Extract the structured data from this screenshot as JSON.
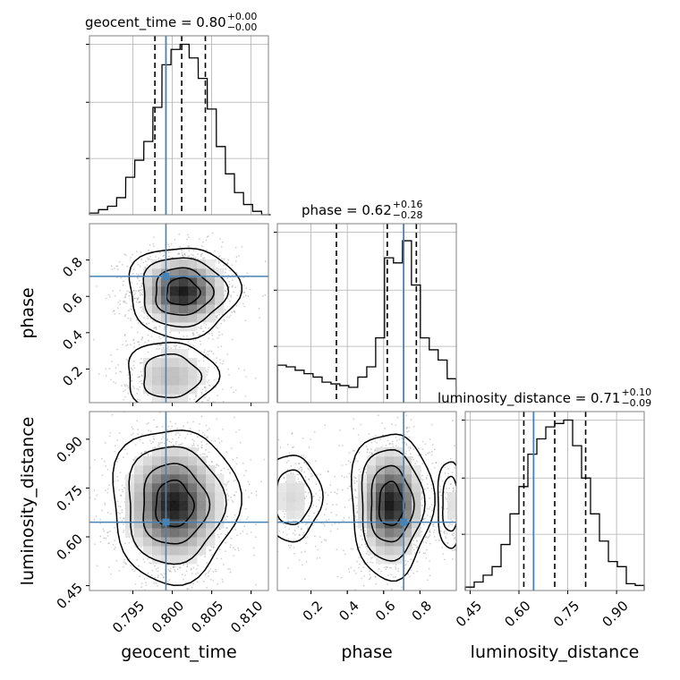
{
  "chart_data": {
    "type": "corner",
    "truth_color": "#4682b4",
    "parameters": [
      {
        "name": "geocent_time",
        "label": "geocent_time",
        "range": [
          0.7895,
          0.8122
        ],
        "ticks": [
          0.795,
          0.8,
          0.805,
          0.81
        ],
        "tick_labels": [
          "0.795",
          "0.800",
          "0.805",
          "0.810"
        ],
        "truth": 0.7992,
        "title": {
          "prefix": "geocent_time = 0.80",
          "plus": "+0.00",
          "minus": "−0.00"
        },
        "quantiles": [
          0.7978,
          0.8012,
          0.8042
        ],
        "hist_x": [
          0.7895,
          0.79065,
          0.7918,
          0.79295,
          0.7941,
          0.79525,
          0.7964,
          0.79755,
          0.7987,
          0.79985,
          0.801,
          0.80215,
          0.8033,
          0.80445,
          0.8056,
          0.80675,
          0.8079,
          0.80905,
          0.8102,
          0.81135
        ],
        "hist_y": [
          0.01,
          0.03,
          0.05,
          0.1,
          0.22,
          0.32,
          0.43,
          0.63,
          0.88,
          0.97,
          1.0,
          0.92,
          0.8,
          0.62,
          0.4,
          0.24,
          0.13,
          0.06,
          0.02,
          0.0
        ]
      },
      {
        "name": "phase",
        "label": "phase",
        "range": [
          0.015,
          1.0
        ],
        "ticks": [
          0.2,
          0.4,
          0.6,
          0.8
        ],
        "tick_labels": [
          "0.2",
          "0.4",
          "0.6",
          "0.8"
        ],
        "truth": 0.71,
        "title": {
          "prefix": "phase = 0.62",
          "plus": "+0.16",
          "minus": "−0.28"
        },
        "quantiles": [
          0.34,
          0.62,
          0.78
        ],
        "hist_x": [
          0.015,
          0.064,
          0.113,
          0.162,
          0.212,
          0.261,
          0.31,
          0.359,
          0.408,
          0.458,
          0.507,
          0.556,
          0.605,
          0.654,
          0.704,
          0.753,
          0.802,
          0.851,
          0.9,
          0.95
        ],
        "hist_y": [
          0.22,
          0.21,
          0.19,
          0.17,
          0.15,
          0.12,
          0.11,
          0.1,
          0.09,
          0.15,
          0.21,
          0.38,
          0.85,
          0.82,
          0.95,
          0.69,
          0.38,
          0.31,
          0.25,
          0.14
        ]
      },
      {
        "name": "luminosity_distance",
        "label": "luminosity_distance",
        "range": [
          0.435,
          0.985
        ],
        "ticks": [
          0.45,
          0.6,
          0.75,
          0.9
        ],
        "tick_labels": [
          "0.45",
          "0.60",
          "0.75",
          "0.90"
        ],
        "truth": 0.645,
        "title": {
          "prefix": "luminosity_distance = 0.71",
          "plus": "+0.10",
          "minus": "−0.09"
        },
        "quantiles": [
          0.615,
          0.71,
          0.805
        ],
        "hist_x": [
          0.435,
          0.4625,
          0.49,
          0.5175,
          0.545,
          0.5725,
          0.6,
          0.6275,
          0.655,
          0.6825,
          0.71,
          0.7375,
          0.765,
          0.7925,
          0.82,
          0.8475,
          0.875,
          0.9025,
          0.93,
          0.9575
        ],
        "hist_y": [
          0.02,
          0.05,
          0.09,
          0.14,
          0.27,
          0.45,
          0.61,
          0.8,
          0.89,
          0.96,
          0.98,
          1.0,
          0.85,
          0.66,
          0.45,
          0.29,
          0.17,
          0.14,
          0.04,
          0.03
        ]
      }
    ],
    "joint": [
      {
        "x": "geocent_time",
        "y": "phase",
        "modes": [
          {
            "cx": 0.8013,
            "cy": 0.625,
            "sx": 0.0028,
            "sy": 0.1,
            "w": 1.0,
            "n": 1400
          },
          {
            "cx": 0.7998,
            "cy": 0.16,
            "sx": 0.003,
            "sy": 0.1,
            "w": 0.35,
            "n": 450
          }
        ]
      },
      {
        "x": "geocent_time",
        "y": "luminosity_distance",
        "modes": [
          {
            "cx": 0.8002,
            "cy": 0.7,
            "sx": 0.0032,
            "sy": 0.095,
            "w": 1.0,
            "n": 1800
          }
        ]
      },
      {
        "x": "phase",
        "y": "luminosity_distance",
        "modes": [
          {
            "cx": 0.64,
            "cy": 0.7,
            "sx": 0.09,
            "sy": 0.09,
            "w": 1.0,
            "n": 1300
          },
          {
            "cx": 0.1,
            "cy": 0.72,
            "sx": 0.08,
            "sy": 0.07,
            "w": 0.22,
            "n": 350
          },
          {
            "cx": 0.97,
            "cy": 0.7,
            "sx": 0.04,
            "sy": 0.07,
            "w": 0.18,
            "n": 150
          }
        ]
      }
    ]
  }
}
